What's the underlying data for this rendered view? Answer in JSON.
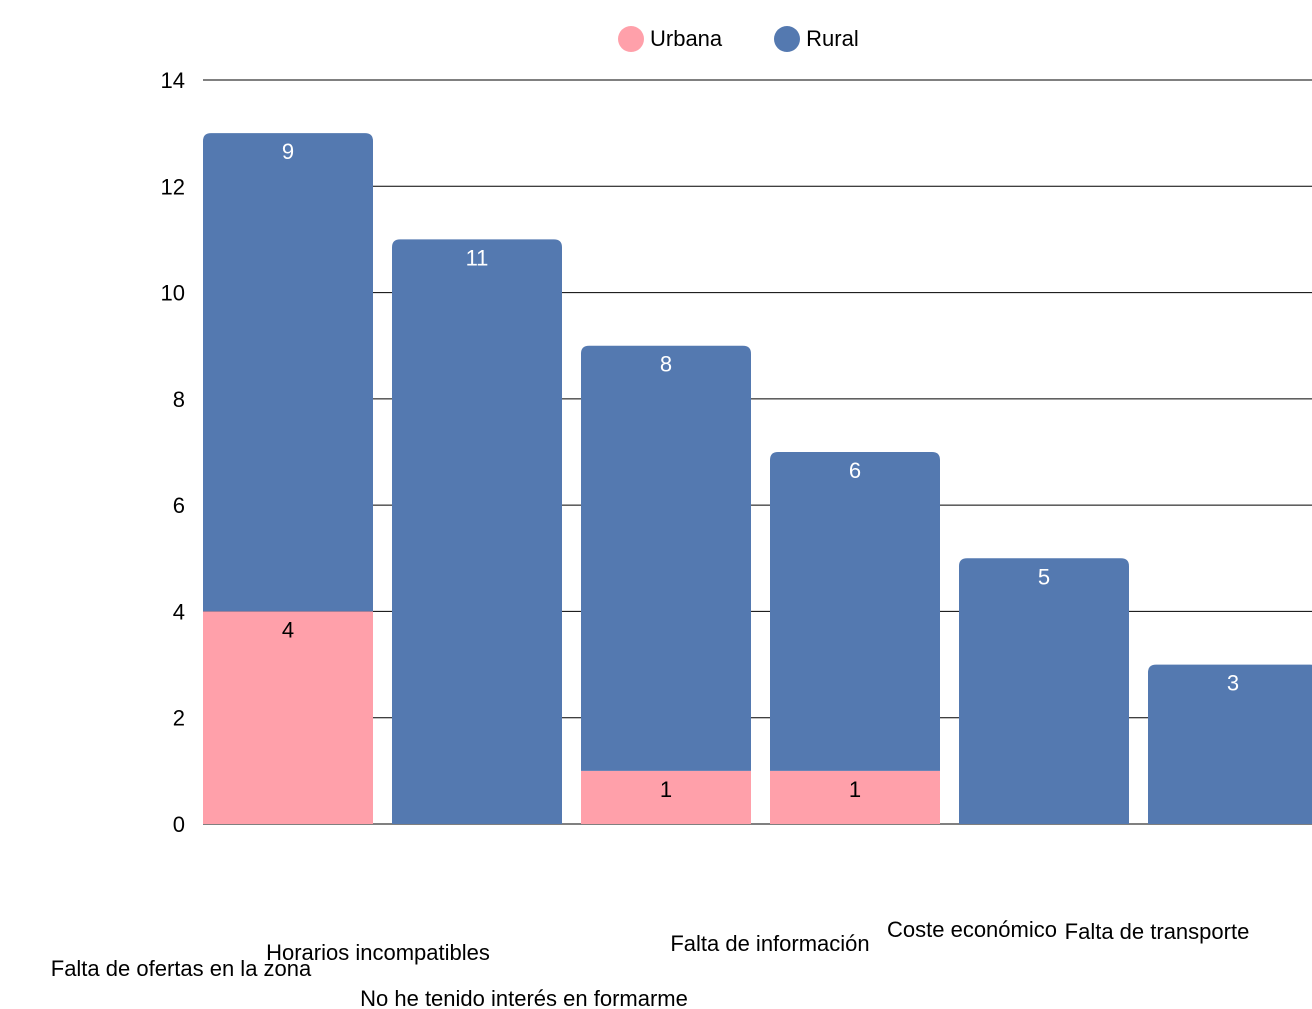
{
  "chart_data": {
    "type": "bar",
    "stacked": true,
    "categories": [
      "Falta de ofertas en la zona",
      "Horarios incompatibles",
      "No he tenido interés en formarme",
      "Falta de información",
      "Coste económico",
      "Falta de transporte"
    ],
    "series": [
      {
        "name": "Urbana",
        "color": "#FFA0AA",
        "label_color": "#000000",
        "values": [
          4,
          0,
          1,
          1,
          0,
          0
        ]
      },
      {
        "name": "Rural",
        "color": "#5479B0",
        "label_color": "#FFFFFF",
        "values": [
          9,
          11,
          8,
          6,
          5,
          3
        ]
      }
    ],
    "ylim": [
      0,
      14
    ],
    "yticks": [
      "0",
      "2",
      "4",
      "6",
      "8",
      "10",
      "12",
      "14"
    ],
    "grid": true,
    "legend": "top"
  }
}
